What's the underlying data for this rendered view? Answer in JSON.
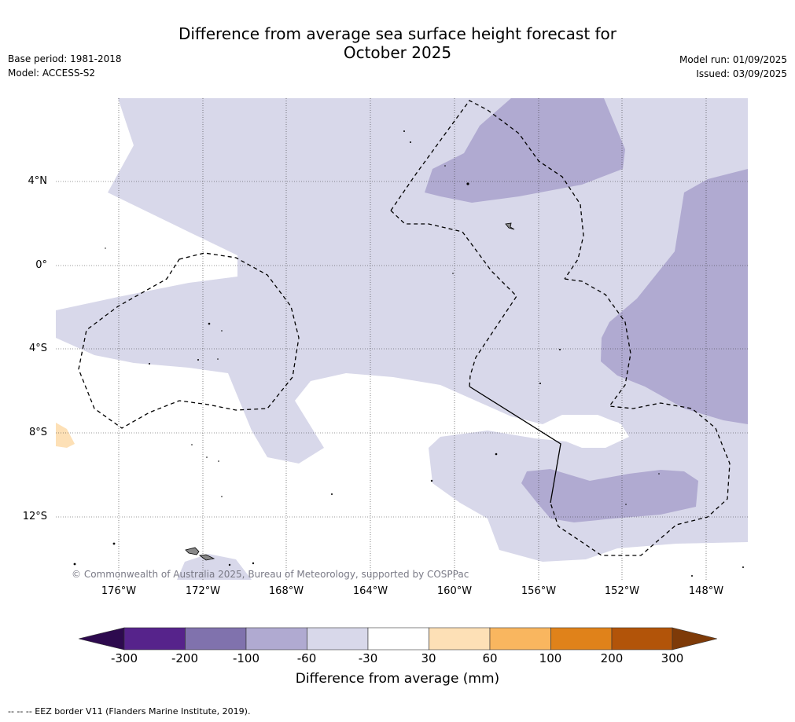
{
  "title_line1": "Difference from average sea surface height forecast for",
  "title_line2": "October 2025",
  "meta_left": {
    "base_period": "Base period: 1981-2018",
    "model": "Model: ACCESS-S2"
  },
  "meta_right": {
    "model_run": "Model run: 01/09/2025",
    "issued": "Issued: 03/09/2025"
  },
  "map": {
    "lat_labels": [
      "4°N",
      "0°",
      "4°S",
      "8°S",
      "12°S"
    ],
    "lon_labels": [
      "176°W",
      "172°W",
      "168°W",
      "164°W",
      "160°W",
      "156°W",
      "152°W",
      "148°W"
    ],
    "copyright": "© Commonwealth of Australia 2025, Bureau of Meteorology, supported by COSPPac"
  },
  "colorbar": {
    "ticks": [
      "-300",
      "-200",
      "-100",
      "-60",
      "-30",
      "30",
      "60",
      "100",
      "200",
      "300"
    ],
    "colors": [
      "#2d0a4e",
      "#56238b",
      "#8072ad",
      "#b0aad1",
      "#d8d8ea",
      "#ffffff",
      "#fde0b6",
      "#f9b65f",
      "#e0821a",
      "#b25409",
      "#7e3a08"
    ],
    "label": "Difference from average (mm)"
  },
  "legend_note": "--  --  -- EEZ border V11 (Flanders Marine Institute, 2019)."
}
